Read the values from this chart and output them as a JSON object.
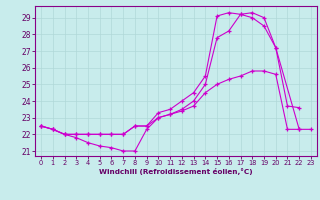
{
  "xlabel": "Windchill (Refroidissement éolien,°C)",
  "xlim": [
    -0.5,
    23.5
  ],
  "ylim": [
    20.7,
    29.7
  ],
  "yticks": [
    21,
    22,
    23,
    24,
    25,
    26,
    27,
    28,
    29
  ],
  "xticks": [
    0,
    1,
    2,
    3,
    4,
    5,
    6,
    7,
    8,
    9,
    10,
    11,
    12,
    13,
    14,
    15,
    16,
    17,
    18,
    19,
    20,
    21,
    22,
    23
  ],
  "bg_color": "#c8ecec",
  "grid_color": "#b0d8d8",
  "line_color": "#cc00cc",
  "line1_x": [
    0,
    1,
    2,
    3,
    4,
    5,
    6,
    7,
    8,
    9,
    10,
    11,
    12,
    13,
    14,
    15,
    16,
    17,
    18,
    19,
    20,
    21,
    22,
    23
  ],
  "line1_y": [
    22.5,
    22.3,
    22.0,
    21.8,
    21.5,
    21.3,
    21.2,
    21.0,
    21.0,
    22.3,
    23.0,
    23.2,
    23.4,
    23.7,
    24.5,
    25.0,
    25.3,
    25.5,
    25.8,
    25.8,
    25.6,
    22.3,
    22.3,
    22.3
  ],
  "line2_x": [
    0,
    1,
    2,
    3,
    4,
    5,
    6,
    7,
    8,
    9,
    10,
    11,
    12,
    13,
    14,
    15,
    16,
    17,
    18,
    19,
    20,
    21,
    22
  ],
  "line2_y": [
    22.5,
    22.3,
    22.0,
    22.0,
    22.0,
    22.0,
    22.0,
    22.0,
    22.5,
    22.5,
    23.3,
    23.5,
    24.0,
    24.5,
    25.5,
    29.1,
    29.3,
    29.2,
    29.0,
    28.5,
    27.2,
    23.7,
    23.6
  ],
  "line3_x": [
    0,
    1,
    2,
    3,
    4,
    5,
    6,
    7,
    8,
    9,
    10,
    11,
    12,
    13,
    14,
    15,
    16,
    17,
    18,
    19,
    20,
    22
  ],
  "line3_y": [
    22.5,
    22.3,
    22.0,
    22.0,
    22.0,
    22.0,
    22.0,
    22.0,
    22.5,
    22.5,
    23.0,
    23.2,
    23.5,
    24.0,
    25.0,
    27.8,
    28.2,
    29.2,
    29.3,
    29.0,
    27.2,
    22.3
  ]
}
